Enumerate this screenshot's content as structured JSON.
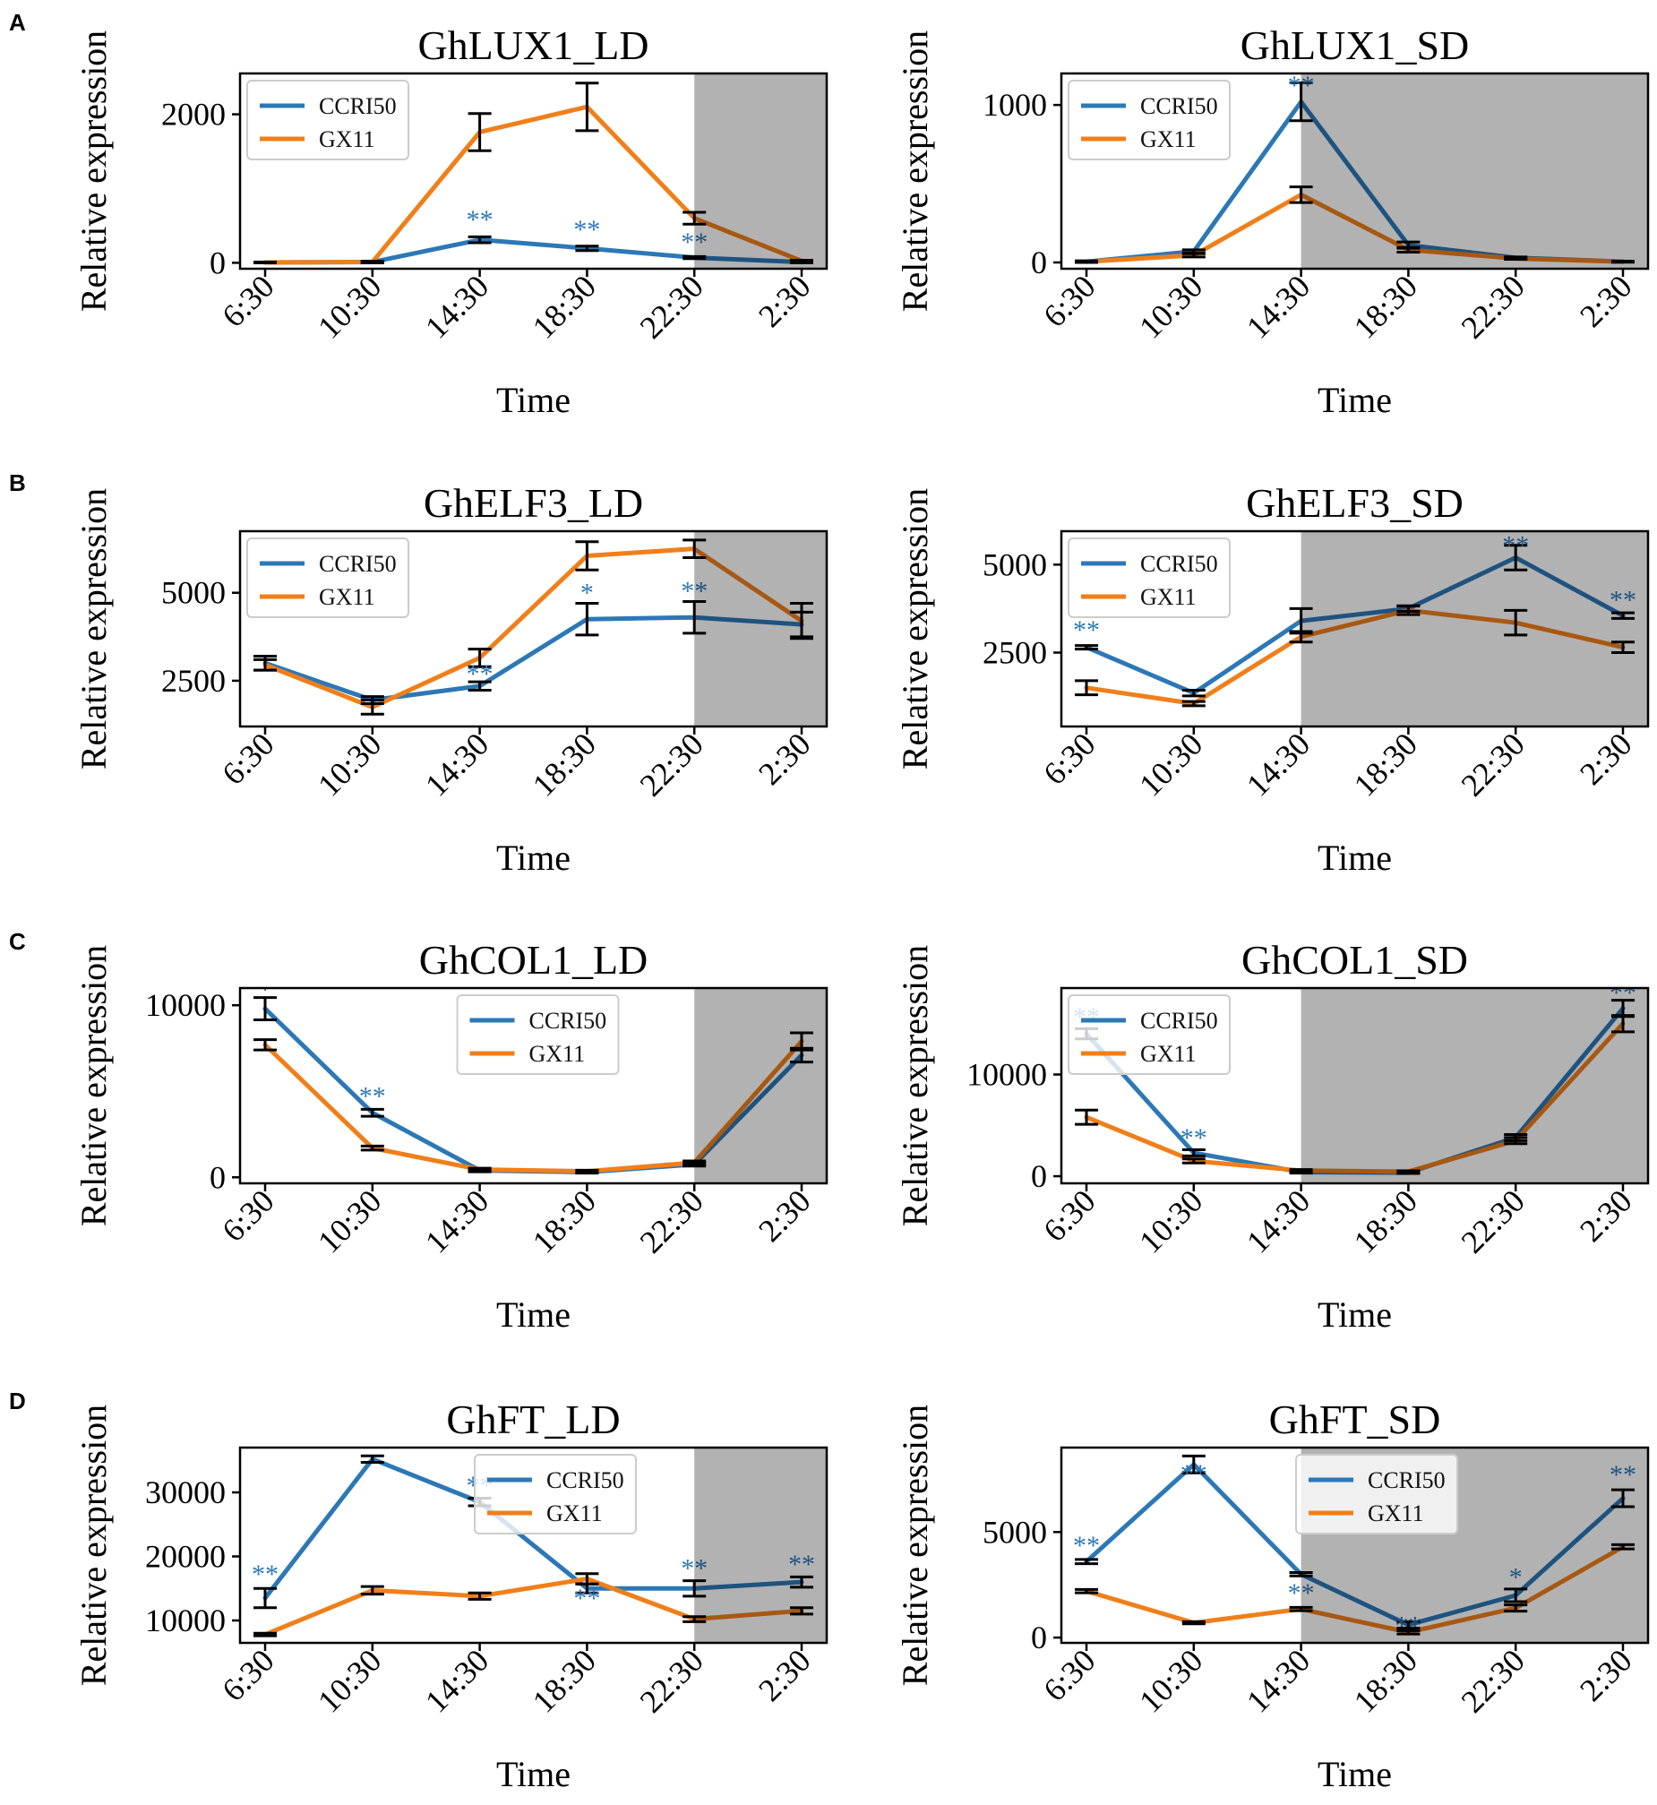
{
  "colors": {
    "ccri50": "#2c78b6",
    "gx11": "#f07f1a",
    "dark_shade": "#b3b3b3",
    "frame": "#000000"
  },
  "common": {
    "x_label": "Time",
    "y_label": "Relative expression"
  },
  "panel_letters": [
    "A",
    "B",
    "C",
    "D"
  ],
  "chart_data": [
    {
      "type": "line",
      "title": "GhLUX1_LD",
      "panel": "A",
      "categories": [
        "6:30",
        "10:30",
        "14:30",
        "18:30",
        "22:30",
        "2:30"
      ],
      "xlabel": "Time",
      "ylabel": "Relative expression",
      "ylim": [
        -80,
        2550
      ],
      "yticks": [
        0,
        2000
      ],
      "dark_from": 4.0,
      "legend_position": "upper-left",
      "series": [
        {
          "name": "CCRI50",
          "values": [
            5,
            10,
            310,
            195,
            70,
            10
          ],
          "errors": [
            5,
            10,
            40,
            30,
            15,
            10
          ]
        },
        {
          "name": "GX11",
          "values": [
            5,
            10,
            1760,
            2100,
            600,
            25
          ],
          "errors": [
            5,
            10,
            250,
            320,
            80,
            10
          ]
        }
      ],
      "annotations": [
        {
          "text": "**",
          "x": 2,
          "y": 460
        },
        {
          "text": "**",
          "x": 3,
          "y": 330
        },
        {
          "text": "**",
          "x": 4,
          "y": 160
        }
      ]
    },
    {
      "type": "line",
      "title": "GhLUX1_SD",
      "panel": "A",
      "categories": [
        "6:30",
        "10:30",
        "14:30",
        "18:30",
        "22:30",
        "2:30"
      ],
      "xlabel": "Time",
      "ylabel": "Relative expression",
      "ylim": [
        -40,
        1200
      ],
      "yticks": [
        0,
        1000
      ],
      "dark_from": 2.0,
      "legend_position": "upper-left",
      "series": [
        {
          "name": "CCRI50",
          "values": [
            5,
            70,
            1020,
            110,
            30,
            5
          ],
          "errors": [
            5,
            10,
            120,
            20,
            5,
            3
          ]
        },
        {
          "name": "GX11",
          "values": [
            5,
            45,
            430,
            80,
            25,
            5
          ],
          "errors": [
            5,
            10,
            50,
            15,
            5,
            3
          ]
        }
      ],
      "annotations": [
        {
          "text": "**",
          "x": 2,
          "y": 1070
        }
      ]
    },
    {
      "type": "line",
      "title": "GhELF3_LD",
      "panel": "B",
      "categories": [
        "6:30",
        "10:30",
        "14:30",
        "18:30",
        "22:30",
        "2:30"
      ],
      "xlabel": "Time",
      "ylabel": "Relative expression",
      "ylim": [
        1200,
        6750
      ],
      "yticks": [
        2500,
        5000
      ],
      "dark_from": 4.0,
      "legend_position": "upper-left",
      "series": [
        {
          "name": "CCRI50",
          "values": [
            3000,
            1950,
            2350,
            4250,
            4300,
            4100
          ],
          "errors": [
            200,
            100,
            120,
            450,
            450,
            350
          ]
        },
        {
          "name": "GX11",
          "values": [
            2950,
            1750,
            3150,
            6050,
            6250,
            4200
          ],
          "errors": [
            150,
            200,
            250,
            400,
            250,
            500
          ]
        }
      ],
      "annotations": [
        {
          "text": "**",
          "x": 2,
          "y": 2450
        },
        {
          "text": "*",
          "x": 3,
          "y": 4750
        },
        {
          "text": "**",
          "x": 4,
          "y": 4800
        }
      ]
    },
    {
      "type": "line",
      "title": "GhELF3_SD",
      "panel": "B",
      "categories": [
        "6:30",
        "10:30",
        "14:30",
        "18:30",
        "22:30",
        "2:30"
      ],
      "xlabel": "Time",
      "ylabel": "Relative expression",
      "ylim": [
        400,
        5950
      ],
      "yticks": [
        2500,
        5000
      ],
      "dark_from": 2.0,
      "legend_position": "upper-left",
      "series": [
        {
          "name": "CCRI50",
          "values": [
            2650,
            1350,
            3400,
            3750,
            5200,
            3550
          ],
          "errors": [
            50,
            80,
            350,
            80,
            350,
            80
          ]
        },
        {
          "name": "GX11",
          "values": [
            1500,
            1050,
            2950,
            3700,
            3350,
            2650
          ],
          "errors": [
            200,
            60,
            150,
            120,
            350,
            150
          ]
        }
      ],
      "annotations": [
        {
          "text": "**",
          "x": 0,
          "y": 2900
        },
        {
          "text": "**",
          "x": 4,
          "y": 5300
        },
        {
          "text": "**",
          "x": 5,
          "y": 3750
        }
      ]
    },
    {
      "type": "line",
      "title": "GhCOL1_LD",
      "panel": "C",
      "categories": [
        "6:30",
        "10:30",
        "14:30",
        "18:30",
        "22:30",
        "2:30"
      ],
      "xlabel": "Time",
      "ylabel": "Relative expression",
      "ylim": [
        -350,
        11000
      ],
      "yticks": [
        0,
        10000
      ],
      "dark_from": 4.0,
      "legend_position": "upper-center",
      "series": [
        {
          "name": "CCRI50",
          "values": [
            9800,
            3750,
            400,
            300,
            750,
            7100
          ],
          "errors": [
            650,
            200,
            80,
            60,
            100,
            400
          ]
        },
        {
          "name": "GX11",
          "values": [
            7700,
            1700,
            450,
            350,
            850,
            7900
          ],
          "errors": [
            300,
            120,
            80,
            60,
            100,
            500
          ]
        }
      ],
      "annotations": [
        {
          "text": "*",
          "x": 0,
          "y": 10400
        },
        {
          "text": "**",
          "x": 1,
          "y": 4200
        }
      ]
    },
    {
      "type": "line",
      "title": "GhCOL1_SD",
      "panel": "C",
      "categories": [
        "6:30",
        "10:30",
        "14:30",
        "18:30",
        "22:30",
        "2:30"
      ],
      "xlabel": "Time",
      "ylabel": "Relative expression",
      "ylim": [
        -700,
        18500
      ],
      "yticks": [
        0,
        10000
      ],
      "dark_from": 2.0,
      "legend_position": "upper-left",
      "series": [
        {
          "name": "CCRI50",
          "values": [
            14000,
            2300,
            400,
            350,
            3800,
            16500
          ],
          "errors": [
            500,
            300,
            100,
            80,
            300,
            800
          ]
        },
        {
          "name": "GX11",
          "values": [
            5800,
            1500,
            550,
            450,
            3500,
            15000
          ],
          "errors": [
            700,
            200,
            100,
            80,
            300,
            800
          ]
        }
      ],
      "annotations": [
        {
          "text": "**",
          "x": 0,
          "y": 14800
        },
        {
          "text": "**",
          "x": 1,
          "y": 2900
        },
        {
          "text": "**",
          "x": 5,
          "y": 17200
        }
      ]
    },
    {
      "type": "line",
      "title": "GhFT_LD",
      "panel": "D",
      "categories": [
        "6:30",
        "10:30",
        "14:30",
        "18:30",
        "22:30",
        "2:30"
      ],
      "xlabel": "Time",
      "ylabel": "Relative expression",
      "ylim": [
        6500,
        37000
      ],
      "yticks": [
        10000,
        20000,
        30000
      ],
      "dark_from": 4.0,
      "legend_position": "upper-right",
      "series": [
        {
          "name": "CCRI50",
          "values": [
            13500,
            35200,
            28500,
            15000,
            15000,
            16000
          ],
          "errors": [
            1500,
            500,
            600,
            700,
            1200,
            800
          ]
        },
        {
          "name": "GX11",
          "values": [
            7800,
            14700,
            13800,
            16500,
            10200,
            11500
          ],
          "errors": [
            200,
            600,
            500,
            800,
            400,
            500
          ]
        }
      ],
      "annotations": [
        {
          "text": "**",
          "x": 0,
          "y": 15900
        },
        {
          "text": "**",
          "x": 1,
          "y": 36300
        },
        {
          "text": "**",
          "x": 2,
          "y": 29700
        },
        {
          "text": "**",
          "x": 3,
          "y": 12100
        },
        {
          "text": "**",
          "x": 4,
          "y": 16800
        },
        {
          "text": "**",
          "x": 5,
          "y": 17400
        }
      ]
    },
    {
      "type": "line",
      "title": "GhFT_SD",
      "panel": "D",
      "categories": [
        "6:30",
        "10:30",
        "14:30",
        "18:30",
        "22:30",
        "2:30"
      ],
      "xlabel": "Time",
      "ylabel": "Relative expression",
      "ylim": [
        -250,
        9000
      ],
      "yticks": [
        0,
        5000
      ],
      "dark_from": 2.0,
      "legend_position": "upper-right",
      "series": [
        {
          "name": "CCRI50",
          "values": [
            3600,
            8200,
            3000,
            600,
            2000,
            6600
          ],
          "errors": [
            100,
            400,
            80,
            150,
            300,
            400
          ]
        },
        {
          "name": "GX11",
          "values": [
            2200,
            700,
            1350,
            250,
            1400,
            4300
          ],
          "errors": [
            80,
            50,
            80,
            80,
            150,
            100
          ]
        }
      ],
      "annotations": [
        {
          "text": "**",
          "x": 0,
          "y": 3950
        },
        {
          "text": "**",
          "x": 1,
          "y": 7350
        },
        {
          "text": "**",
          "x": 2,
          "y": 1700
        },
        {
          "text": "**",
          "x": 3,
          "y": 150
        },
        {
          "text": "*",
          "x": 4,
          "y": 2450
        },
        {
          "text": "**",
          "x": 5,
          "y": 7300
        }
      ]
    }
  ]
}
